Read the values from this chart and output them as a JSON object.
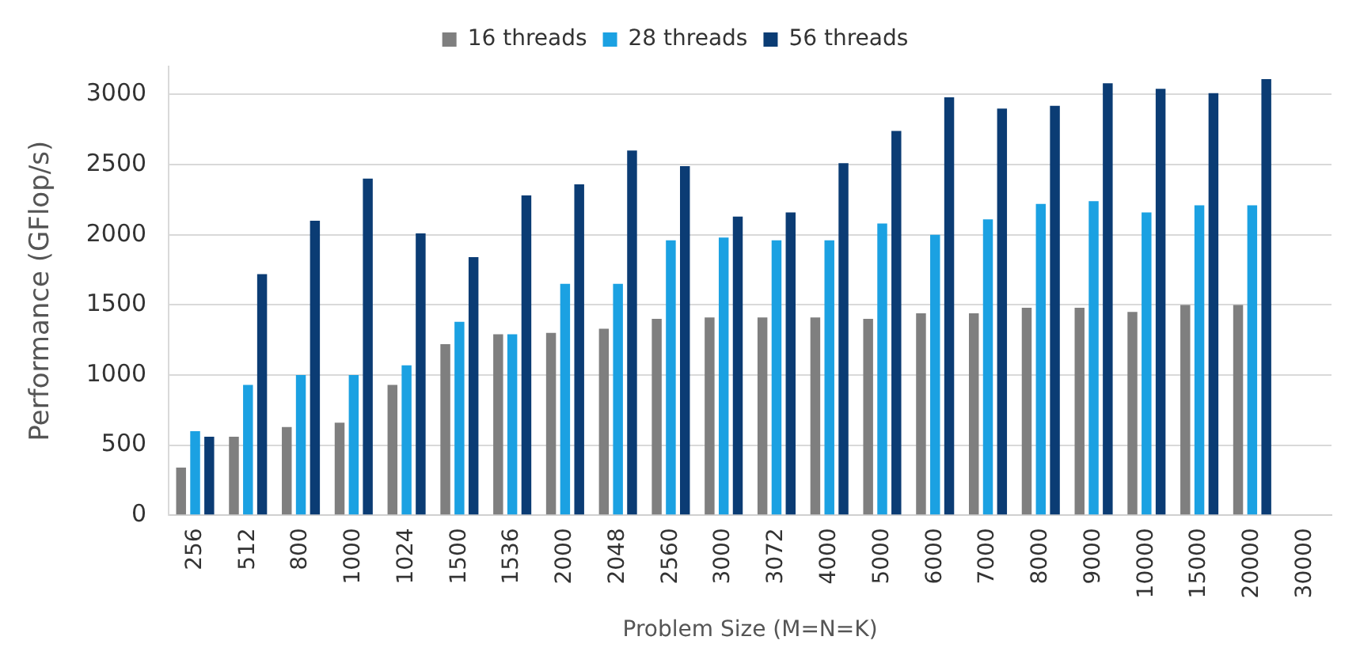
{
  "chart_data": {
    "type": "bar",
    "xlabel": "Problem Size (M=N=K)",
    "ylabel": "Performance (GFlop/s)",
    "categories": [
      "256",
      "512",
      "800",
      "1000",
      "1024",
      "1500",
      "1536",
      "2000",
      "2048",
      "2560",
      "3000",
      "3072",
      "4000",
      "5000",
      "6000",
      "7000",
      "8000",
      "9000",
      "10000",
      "15000",
      "20000",
      "30000"
    ],
    "series": [
      {
        "name": "16 threads",
        "color": "#7f7f7f",
        "values": [
          340,
          560,
          630,
          660,
          930,
          1220,
          1290,
          1300,
          1330,
          1400,
          1410,
          1410,
          1410,
          1400,
          1440,
          1440,
          1480,
          1480,
          1450,
          1500,
          1500,
          null
        ]
      },
      {
        "name": "28 threads",
        "color": "#1ba1e2",
        "values": [
          600,
          930,
          1000,
          1000,
          1070,
          1380,
          1290,
          1650,
          1650,
          1960,
          1980,
          1960,
          1960,
          2080,
          2000,
          2110,
          2220,
          2240,
          2160,
          2210,
          2210,
          null
        ]
      },
      {
        "name": "56 threads",
        "color": "#0b3c74",
        "values": [
          560,
          1720,
          2100,
          2400,
          2010,
          1840,
          2280,
          2360,
          2600,
          2490,
          2130,
          2160,
          2510,
          2740,
          2980,
          2900,
          2920,
          3080,
          3040,
          3010,
          3110,
          null
        ]
      }
    ],
    "ylim": [
      0,
      3200
    ],
    "yticks": [
      0,
      500,
      1000,
      1500,
      2000,
      2500,
      3000
    ],
    "grid": "y",
    "legend": "top"
  }
}
